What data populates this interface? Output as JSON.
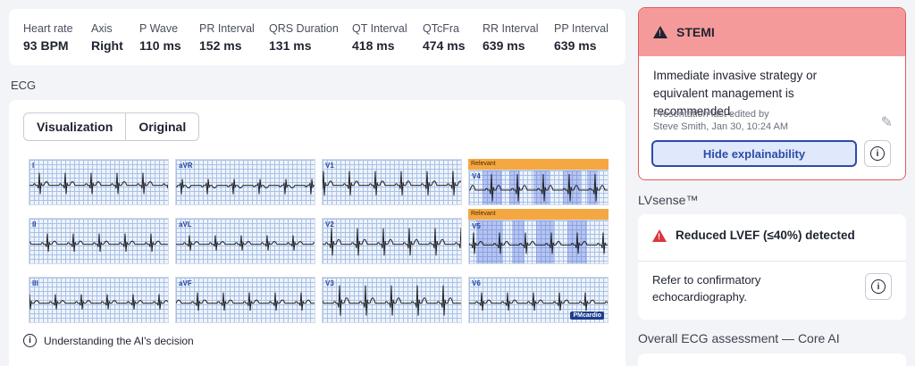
{
  "metrics": [
    {
      "label": "Heart rate",
      "value": "93 BPM"
    },
    {
      "label": "Axis",
      "value": "Right"
    },
    {
      "label": "P Wave",
      "value": "110 ms"
    },
    {
      "label": "PR Interval",
      "value": "152 ms"
    },
    {
      "label": "QRS Duration",
      "value": "131 ms"
    },
    {
      "label": "QT Interval",
      "value": "418 ms"
    },
    {
      "label": "QTcFra",
      "value": "474 ms"
    },
    {
      "label": "RR Interval",
      "value": "639 ms"
    },
    {
      "label": "PP Interval",
      "value": "639 ms"
    }
  ],
  "ecg": {
    "heading": "ECG",
    "toggle": {
      "visualization": "Visualization",
      "original": "Original"
    },
    "leads": [
      "I",
      "aVR",
      "V1",
      "V4",
      "II",
      "aVL",
      "V2",
      "V5",
      "III",
      "aVF",
      "V3",
      "V6"
    ],
    "relevant_label": "Relevant",
    "brand": "PMcardio",
    "understanding": "Understanding the AI's decision"
  },
  "stemi": {
    "title": "STEMI",
    "recommendation": "Immediate invasive strategy or equivalent management is recommended.",
    "edited_line1": "Presentation last edited by",
    "edited_line2": "Steve Smith, Jan 30, 10:24 AM",
    "hide_button": "Hide explainability"
  },
  "lvsense": {
    "heading": "LVsense™",
    "detection": "Reduced LVEF (≤40%) detected",
    "advice": "Refer to confirmatory echocardiography."
  },
  "overall": {
    "heading": "Overall ECG assessment — Core AI"
  },
  "colors": {
    "alert_header": "#f59a9a",
    "alert_border": "#e05d5d",
    "primary": "#2e4aa8",
    "relevant_tag": "#f5a742"
  }
}
